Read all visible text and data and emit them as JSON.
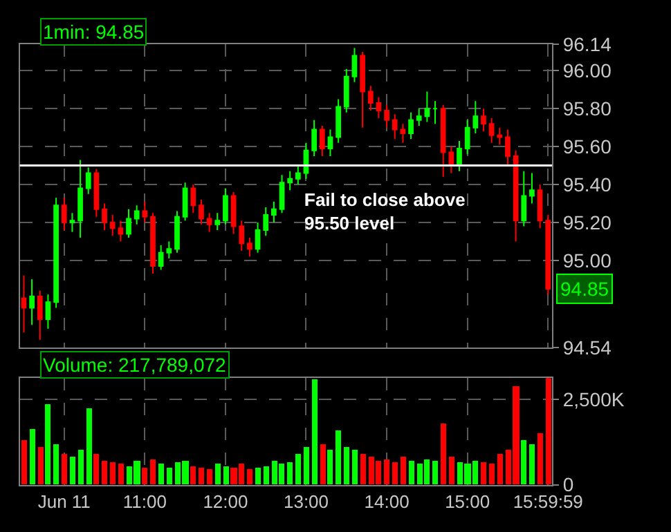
{
  "chart_data": [
    {
      "type": "candlestick",
      "title": "1min: 94.85",
      "colors": [
        "#ff0000",
        "#00ff00",
        "#ff0000",
        "#00ff00",
        "#00ff00",
        "#ff0000",
        "#00ff00",
        "#00ff00",
        "#00ff00",
        "#ff0000",
        "#ff0000",
        "#ff0000",
        "#ff0000",
        "#00ff00",
        "#00ff00",
        "#ff0000",
        "#ff0000",
        "#00ff00",
        "#00ff00",
        "#00ff00",
        "#00ff00",
        "#ff0000",
        "#ff0000",
        "#ff0000",
        "#00ff00",
        "#00ff00",
        "#ff0000",
        "#ff0000",
        "#ff0000",
        "#00ff00",
        "#00ff00",
        "#00ff00",
        "#00ff00",
        "#00ff00",
        "#00ff00",
        "#00ff00",
        "#00ff00",
        "#ff0000",
        "#00ff00",
        "#00ff00",
        "#00ff00",
        "#00ff00",
        "#ff0000",
        "#ff0000",
        "#ff0000",
        "#ff0000",
        "#ff0000",
        "#ff0000",
        "#00ff00",
        "#00ff00",
        "#00ff00",
        "#00ff00",
        "#ff0000",
        "#ff0000",
        "#00ff00",
        "#00ff00",
        "#00ff00",
        "#ff0000",
        "#ff0000",
        "#ff0000",
        "#ff0000",
        "#ff0000",
        "#00ff00",
        "#00ff00",
        "#ff0000",
        "#ff0000"
      ],
      "x": [
        9.5,
        9.6,
        9.7,
        9.8,
        9.9,
        10.0,
        10.1,
        10.2,
        10.3,
        10.4,
        10.5,
        10.6,
        10.7,
        10.8,
        10.9,
        11.0,
        11.1,
        11.2,
        11.3,
        11.4,
        11.5,
        11.6,
        11.7,
        11.8,
        11.9,
        12.0,
        12.1,
        12.2,
        12.3,
        12.4,
        12.5,
        12.6,
        12.7,
        12.8,
        12.9,
        13.0,
        13.1,
        13.2,
        13.3,
        13.4,
        13.5,
        13.6,
        13.7,
        13.8,
        13.9,
        14.0,
        14.1,
        14.2,
        14.3,
        14.4,
        14.5,
        14.6,
        14.7,
        14.8,
        14.9,
        15.0,
        15.1,
        15.2,
        15.3,
        15.4,
        15.5,
        15.6,
        15.7,
        15.8,
        15.9,
        16.0
      ],
      "ohlc": [
        [
          94.8,
          94.92,
          94.62,
          94.75
        ],
        [
          94.75,
          94.9,
          94.66,
          94.81
        ],
        [
          94.81,
          94.84,
          94.58,
          94.69
        ],
        [
          94.69,
          94.82,
          94.64,
          94.78
        ],
        [
          94.78,
          95.33,
          94.75,
          95.29
        ],
        [
          95.29,
          95.33,
          95.16,
          95.2
        ],
        [
          95.2,
          95.25,
          95.15,
          95.21
        ],
        [
          95.21,
          95.53,
          95.12,
          95.38
        ],
        [
          95.38,
          95.49,
          95.35,
          95.46
        ],
        [
          95.46,
          95.48,
          95.23,
          95.27
        ],
        [
          95.27,
          95.3,
          95.16,
          95.2
        ],
        [
          95.2,
          95.24,
          95.13,
          95.17
        ],
        [
          95.17,
          95.21,
          95.1,
          95.14
        ],
        [
          95.14,
          95.27,
          95.12,
          95.22
        ],
        [
          95.22,
          95.29,
          95.19,
          95.26
        ],
        [
          95.26,
          95.31,
          95.2,
          95.23
        ],
        [
          95.23,
          95.25,
          94.93,
          94.97
        ],
        [
          94.97,
          95.08,
          94.95,
          95.04
        ],
        [
          95.04,
          95.1,
          95.01,
          95.06
        ],
        [
          95.06,
          95.26,
          95.04,
          95.23
        ],
        [
          95.23,
          95.41,
          95.21,
          95.38
        ],
        [
          95.38,
          95.4,
          95.25,
          95.29
        ],
        [
          95.29,
          95.32,
          95.19,
          95.22
        ],
        [
          95.22,
          95.25,
          95.15,
          95.19
        ],
        [
          95.19,
          95.25,
          95.16,
          95.21
        ],
        [
          95.21,
          95.38,
          95.19,
          95.34
        ],
        [
          95.34,
          95.36,
          95.14,
          95.18
        ],
        [
          95.18,
          95.21,
          95.05,
          95.09
        ],
        [
          95.09,
          95.12,
          95.02,
          95.06
        ],
        [
          95.06,
          95.2,
          95.04,
          95.16
        ],
        [
          95.16,
          95.28,
          95.13,
          95.24
        ],
        [
          95.24,
          95.31,
          95.2,
          95.27
        ],
        [
          95.27,
          95.45,
          95.25,
          95.41
        ],
        [
          95.41,
          95.47,
          95.37,
          95.43
        ],
        [
          95.43,
          95.5,
          95.4,
          95.46
        ],
        [
          95.46,
          95.62,
          95.43,
          95.58
        ],
        [
          95.58,
          95.74,
          95.55,
          95.69
        ],
        [
          95.69,
          95.71,
          95.55,
          95.59
        ],
        [
          95.59,
          95.69,
          95.55,
          95.65
        ],
        [
          95.65,
          95.85,
          95.62,
          95.81
        ],
        [
          95.81,
          96.01,
          95.78,
          95.97
        ],
        [
          95.97,
          96.12,
          95.94,
          96.08
        ],
        [
          96.08,
          96.1,
          95.7,
          95.89
        ],
        [
          95.89,
          95.92,
          95.79,
          95.83
        ],
        [
          95.83,
          95.86,
          95.75,
          95.79
        ],
        [
          95.79,
          95.82,
          95.7,
          95.74
        ],
        [
          95.74,
          95.77,
          95.64,
          95.69
        ],
        [
          95.69,
          95.72,
          95.62,
          95.67
        ],
        [
          95.67,
          95.78,
          95.64,
          95.74
        ],
        [
          95.74,
          95.8,
          95.71,
          95.76
        ],
        [
          95.76,
          95.89,
          95.73,
          95.8
        ],
        [
          95.8,
          95.84,
          95.72,
          95.8
        ],
        [
          95.8,
          95.82,
          95.44,
          95.57
        ],
        [
          95.57,
          95.6,
          95.46,
          95.5
        ],
        [
          95.5,
          95.63,
          95.47,
          95.59
        ],
        [
          95.59,
          95.74,
          95.56,
          95.7
        ],
        [
          95.7,
          95.84,
          95.67,
          95.76
        ],
        [
          95.76,
          95.8,
          95.68,
          95.72
        ],
        [
          95.72,
          95.75,
          95.62,
          95.66
        ],
        [
          95.66,
          95.7,
          95.61,
          95.65
        ],
        [
          95.65,
          95.69,
          95.5,
          95.55
        ],
        [
          95.55,
          95.58,
          95.1,
          95.21
        ],
        [
          95.21,
          95.47,
          95.18,
          95.34
        ],
        [
          95.34,
          95.46,
          95.3,
          95.37
        ],
        [
          95.37,
          95.4,
          95.17,
          95.21
        ],
        [
          95.21,
          95.24,
          94.82,
          94.85
        ]
      ],
      "xlim": [
        9.45,
        16.05
      ],
      "xticks": [
        {
          "value": 10,
          "label": null
        },
        {
          "value": 11,
          "label": null
        },
        {
          "value": 12,
          "label": null
        },
        {
          "value": 13,
          "label": null
        },
        {
          "value": 14,
          "label": null
        },
        {
          "value": 15,
          "label": null
        },
        {
          "value": 15.9997,
          "label": null
        }
      ],
      "ylim": [
        94.54,
        96.14
      ],
      "yticks": [
        94.54,
        {
          "value": 95,
          "label": "95.00"
        },
        {
          "value": 95.2,
          "label": "95.20"
        },
        {
          "value": 95.4,
          "label": "95.40"
        },
        {
          "value": 95.6,
          "label": "95.60"
        },
        {
          "value": 95.8,
          "label": "95.80"
        },
        {
          "value": 96,
          "label": "96.00"
        },
        96.14
      ],
      "tick_labels": "y",
      "grid": true,
      "ref_lines": [
        {
          "axis": "y",
          "value": 95.5,
          "color": "#ffffff"
        }
      ],
      "annotations": [
        "Fail to close above\n95.50 level",
        {
          "text": "94.85",
          "x": 16.0,
          "y": 94.85
        }
      ]
    },
    {
      "type": "bar",
      "title": "Volume: 217,789,072",
      "x": [
        9.5,
        9.6,
        9.7,
        9.8,
        9.9,
        10.0,
        10.1,
        10.2,
        10.3,
        10.4,
        10.5,
        10.6,
        10.7,
        10.8,
        10.9,
        11.0,
        11.1,
        11.2,
        11.3,
        11.4,
        11.5,
        11.6,
        11.7,
        11.8,
        11.9,
        12.0,
        12.1,
        12.2,
        12.3,
        12.4,
        12.5,
        12.6,
        12.7,
        12.8,
        12.9,
        13.0,
        13.1,
        13.2,
        13.3,
        13.4,
        13.5,
        13.6,
        13.7,
        13.8,
        13.9,
        14.0,
        14.1,
        14.2,
        14.3,
        14.4,
        14.5,
        14.6,
        14.7,
        14.8,
        14.9,
        15.0,
        15.1,
        15.2,
        15.3,
        15.4,
        15.5,
        15.6,
        15.7,
        15.8,
        15.9,
        16.0
      ],
      "values": [
        1300,
        1620,
        1100,
        2370,
        1200,
        900,
        800,
        1000,
        2250,
        900,
        700,
        650,
        600,
        550,
        700,
        500,
        750,
        600,
        500,
        650,
        700,
        550,
        500,
        450,
        600,
        550,
        500,
        600,
        450,
        500,
        550,
        700,
        600,
        650,
        900,
        1100,
        3070,
        1200,
        1000,
        1590,
        1100,
        1000,
        900,
        800,
        700,
        750,
        650,
        800,
        700,
        600,
        750,
        700,
        1790,
        800,
        650,
        600,
        700,
        650,
        600,
        900,
        1000,
        2870,
        1300,
        1200,
        1500,
        3110
      ],
      "colors": [
        "#ff0000",
        "#00ff00",
        "#ff0000",
        "#00ff00",
        "#00ff00",
        "#ff0000",
        "#00ff00",
        "#00ff00",
        "#00ff00",
        "#ff0000",
        "#ff0000",
        "#ff0000",
        "#ff0000",
        "#00ff00",
        "#00ff00",
        "#ff0000",
        "#ff0000",
        "#00ff00",
        "#00ff00",
        "#00ff00",
        "#00ff00",
        "#ff0000",
        "#ff0000",
        "#ff0000",
        "#00ff00",
        "#00ff00",
        "#ff0000",
        "#ff0000",
        "#ff0000",
        "#00ff00",
        "#00ff00",
        "#00ff00",
        "#00ff00",
        "#00ff00",
        "#00ff00",
        "#00ff00",
        "#00ff00",
        "#ff0000",
        "#00ff00",
        "#00ff00",
        "#00ff00",
        "#00ff00",
        "#ff0000",
        "#ff0000",
        "#ff0000",
        "#ff0000",
        "#ff0000",
        "#ff0000",
        "#00ff00",
        "#00ff00",
        "#00ff00",
        "#00ff00",
        "#ff0000",
        "#ff0000",
        "#00ff00",
        "#00ff00",
        "#00ff00",
        "#ff0000",
        "#ff0000",
        "#ff0000",
        "#ff0000",
        "#ff0000",
        "#00ff00",
        "#00ff00",
        "#ff0000",
        "#ff0000"
      ],
      "xlim": [
        9.45,
        16.05
      ],
      "xticks": [
        {
          "value": 10,
          "label": "Jun 11"
        },
        {
          "value": 11,
          "label": "11:00"
        },
        {
          "value": 12,
          "label": "12:00"
        },
        {
          "value": 13,
          "label": "13:00"
        },
        {
          "value": 14,
          "label": "14:00"
        },
        {
          "value": 15,
          "label": "15:00"
        },
        {
          "value": 15.9997,
          "label": "15:59:59"
        }
      ],
      "ylim": [
        0,
        3130
      ],
      "yticks": [
        0,
        {
          "value": 2500,
          "label": "2,500K"
        }
      ],
      "grid": true
    }
  ]
}
